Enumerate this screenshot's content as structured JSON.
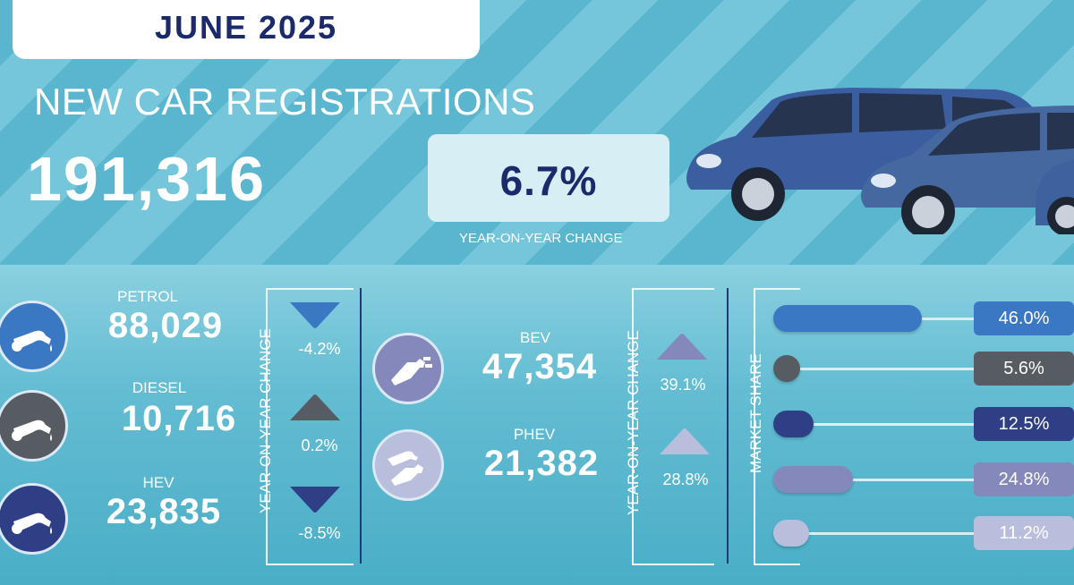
{
  "header": {
    "date": "JUNE 2025",
    "title": "NEW CAR REGISTRATIONS",
    "total": "191,316",
    "yoy_change": "6.7%",
    "yoy_label": "YEAR-ON-YEAR CHANGE"
  },
  "fuel_types": [
    {
      "label": "PETROL",
      "value": "88,029",
      "change": "-4.2%",
      "direction": "down",
      "share": "46.0%",
      "share_value": 46.0,
      "color": "#3a78c4"
    },
    {
      "label": "DIESEL",
      "value": "10,716",
      "change": "0.2%",
      "direction": "up",
      "share": "5.6%",
      "share_value": 5.6,
      "color": "#575b62"
    },
    {
      "label": "HEV",
      "value": "23,835",
      "change": "-8.5%",
      "direction": "down",
      "share": "12.5%",
      "share_value": 12.5,
      "color": "#2e3f86"
    },
    {
      "label": "BEV",
      "value": "47,354",
      "change": "39.1%",
      "direction": "up",
      "share": "24.8%",
      "share_value": 24.8,
      "color": "#8588ba"
    },
    {
      "label": "PHEV",
      "value": "21,382",
      "change": "28.8%",
      "direction": "up",
      "share": "11.2%",
      "share_value": 11.2,
      "color": "#b9bedd"
    }
  ],
  "labels": {
    "yoy_vertical": "YEAR-ON-YEAR CHANGE",
    "market_share": "MARKET SHARE"
  },
  "icons": {
    "petrol": "fuel-pump-icon",
    "diesel": "fuel-pump-icon",
    "hev": "fuel-pump-icon",
    "bev": "ev-plug-icon",
    "phev": "hybrid-plug-pump-icon"
  }
}
